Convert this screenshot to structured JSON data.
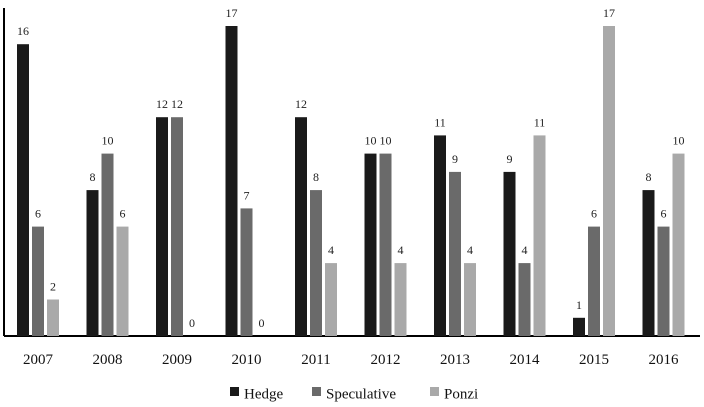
{
  "chart_data": {
    "type": "bar",
    "title": "",
    "xlabel": "",
    "ylabel": "",
    "ylim": [
      0,
      17
    ],
    "grid": false,
    "legend_position": "bottom-center",
    "categories": [
      "2007",
      "2008",
      "2009",
      "2010",
      "2011",
      "2012",
      "2013",
      "2014",
      "2015",
      "2016"
    ],
    "series": [
      {
        "name": "Hedge",
        "color": "#1a1a1a",
        "values": [
          16,
          8,
          12,
          17,
          12,
          10,
          11,
          9,
          1,
          8
        ]
      },
      {
        "name": "Speculative",
        "color": "#6a6a6a",
        "values": [
          6,
          10,
          12,
          7,
          8,
          10,
          9,
          4,
          6,
          6
        ]
      },
      {
        "name": "Ponzi",
        "color": "#a9a9a9",
        "values": [
          2,
          6,
          0,
          0,
          4,
          4,
          4,
          11,
          17,
          10
        ]
      }
    ]
  }
}
